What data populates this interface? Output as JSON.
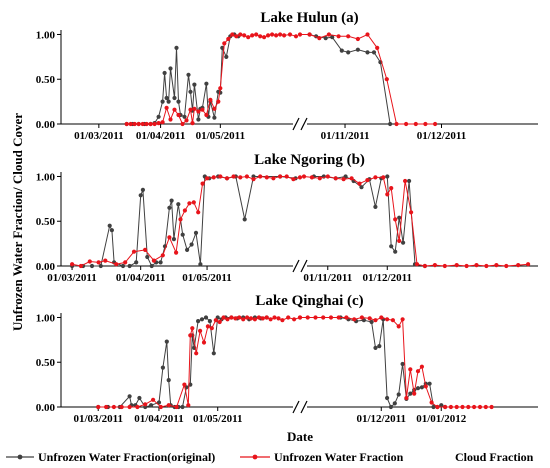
{
  "chart_data": {
    "type": "line",
    "ylabel": "Unfrozen Water Fraction/ Cloud Cover",
    "xlabel": "Date",
    "legend": {
      "placement": "bottom",
      "entries": [
        "Unfrozen Water Fraction(original)",
        "Unfrozen Water Fraction",
        "Cloud Fraction"
      ]
    },
    "colors": {
      "original": "#404040",
      "fraction": "#e8141b",
      "cloud": "#000000"
    },
    "panels": [
      {
        "title": "Lake Hulun (a)",
        "ylim": [
          0,
          1.05
        ],
        "yticks": [
          "0.00",
          "0.50",
          "1.00"
        ],
        "xticks": [
          "01/03/2011",
          "01/04/2011",
          "01/05/2011",
          "01/11/2011",
          "01/12/2011"
        ],
        "series": [
          {
            "name": "Unfrozen Water Fraction(original)",
            "x": [
              "2011-03-15",
              "2011-03-18",
              "2011-03-21",
              "2011-03-24",
              "2011-03-27",
              "2011-03-29",
              "2011-03-31",
              "2011-04-02",
              "2011-04-03",
              "2011-04-04",
              "2011-04-05",
              "2011-04-06",
              "2011-04-08",
              "2011-04-09",
              "2011-04-10",
              "2011-04-11",
              "2011-04-13",
              "2011-04-15",
              "2011-04-16",
              "2011-04-17",
              "2011-04-18",
              "2011-04-20",
              "2011-04-21",
              "2011-04-22",
              "2011-04-24",
              "2011-04-25",
              "2011-04-26",
              "2011-04-28",
              "2011-04-30",
              "2011-05-01",
              "2011-05-02",
              "2011-05-04",
              "2011-05-06",
              "2011-05-08",
              "2011-05-10",
              "2011-10-21",
              "2011-10-23",
              "2011-10-26",
              "2011-10-28",
              "2011-10-31",
              "2011-11-02",
              "2011-11-05",
              "2011-11-08",
              "2011-11-10",
              "2011-11-12",
              "2011-11-15"
            ],
            "y": [
              0.0,
              0.0,
              0.0,
              0.0,
              0.0,
              0.01,
              0.08,
              0.25,
              0.57,
              0.29,
              0.25,
              0.62,
              0.29,
              0.85,
              0.25,
              0.1,
              0.08,
              0.55,
              0.36,
              0.15,
              0.44,
              0.05,
              0.17,
              0.18,
              0.45,
              0.08,
              0.25,
              0.07,
              0.36,
              0.35,
              0.85,
              0.75,
              0.98,
              1.0,
              0.98,
              1.0,
              0.98,
              0.96,
              0.97,
              0.82,
              0.8,
              0.83,
              0.8,
              0.8,
              0.69,
              0.0
            ]
          },
          {
            "name": "Unfrozen Water Fraction",
            "x": [
              "2011-03-15",
              "2011-03-17",
              "2011-03-19",
              "2011-03-21",
              "2011-03-23",
              "2011-03-25",
              "2011-03-27",
              "2011-03-29",
              "2011-03-31",
              "2011-04-02",
              "2011-04-04",
              "2011-04-06",
              "2011-04-08",
              "2011-04-10",
              "2011-04-12",
              "2011-04-14",
              "2011-04-16",
              "2011-04-17",
              "2011-04-18",
              "2011-04-20",
              "2011-04-22",
              "2011-04-24",
              "2011-04-26",
              "2011-04-28",
              "2011-04-30",
              "2011-05-01",
              "2011-05-03",
              "2011-05-05",
              "2011-05-07",
              "2011-05-09",
              "2011-05-11",
              "2011-05-13",
              "2011-05-15",
              "2011-05-17",
              "2011-05-19",
              "2011-05-21",
              "2011-05-23",
              "2011-05-25",
              "2011-05-27",
              "2011-05-29",
              "2011-05-31",
              "2011-06-02",
              "2011-06-05",
              "2011-06-08",
              "2011-10-18",
              "2011-10-21",
              "2011-10-24",
              "2011-10-27",
              "2011-10-30",
              "2011-11-02",
              "2011-11-05",
              "2011-11-08",
              "2011-11-11",
              "2011-11-14",
              "2011-11-17",
              "2011-11-20",
              "2011-11-23",
              "2011-11-26",
              "2011-11-29"
            ],
            "y": [
              0.0,
              0.0,
              0.0,
              0.0,
              0.0,
              0.0,
              0.0,
              0.0,
              0.01,
              0.02,
              0.18,
              0.05,
              0.16,
              0.1,
              0.0,
              0.04,
              0.16,
              0.01,
              0.17,
              0.14,
              0.16,
              0.1,
              0.27,
              0.17,
              0.25,
              0.4,
              0.9,
              0.95,
              1.0,
              0.98,
              1.0,
              0.99,
              0.97,
              0.99,
              1.0,
              0.98,
              0.97,
              0.99,
              1.0,
              0.99,
              1.0,
              0.99,
              1.0,
              0.98,
              1.0,
              1.0,
              0.96,
              1.0,
              0.98,
              0.98,
              0.95,
              1.0,
              0.85,
              0.5,
              0.0,
              0.0,
              0.0,
              0.0,
              0.0
            ]
          }
        ]
      },
      {
        "title": "Lake Ngoring (b)",
        "ylim": [
          0,
          1.05
        ],
        "yticks": [
          "0.00",
          "0.50",
          "1.00"
        ],
        "xticks": [
          "01/03/2011",
          "01/04/2011",
          "01/05/2011",
          "01/11/2011",
          "01/12/2011"
        ],
        "series": [
          {
            "name": "Unfrozen Water Fraction(original)",
            "x": [
              "2011-03-01",
              "2011-03-06",
              "2011-03-10",
              "2011-03-14",
              "2011-03-18",
              "2011-03-19",
              "2011-03-20",
              "2011-03-24",
              "2011-03-27",
              "2011-03-30",
              "2011-04-01",
              "2011-04-02",
              "2011-04-04",
              "2011-04-06",
              "2011-04-08",
              "2011-04-10",
              "2011-04-12",
              "2011-04-14",
              "2011-04-15",
              "2011-04-16",
              "2011-04-18",
              "2011-04-20",
              "2011-04-22",
              "2011-04-24",
              "2011-04-26",
              "2011-04-28",
              "2011-04-30",
              "2011-05-02",
              "2011-05-06",
              "2011-05-10",
              "2011-05-14",
              "2011-05-18",
              "2011-05-22",
              "2011-06-03",
              "2011-06-10",
              "2011-10-25",
              "2011-10-30",
              "2011-11-05",
              "2011-11-10",
              "2011-11-14",
              "2011-11-18",
              "2011-11-22",
              "2011-11-25",
              "2011-11-28",
              "2011-12-01",
              "2011-12-03",
              "2011-12-05",
              "2011-12-07",
              "2011-12-09",
              "2011-12-12",
              "2011-12-15",
              "2011-12-20"
            ],
            "y": [
              0.0,
              0.0,
              0.0,
              0.0,
              0.45,
              0.4,
              0.04,
              0.0,
              0.0,
              0.04,
              0.79,
              0.85,
              0.1,
              0.0,
              0.04,
              0.04,
              0.22,
              0.65,
              0.73,
              0.3,
              0.69,
              0.35,
              0.18,
              0.24,
              0.37,
              0.02,
              1.0,
              0.98,
              1.0,
              0.98,
              1.0,
              0.52,
              1.0,
              1.0,
              0.98,
              1.0,
              1.0,
              0.98,
              1.0,
              0.95,
              0.88,
              0.97,
              0.66,
              0.98,
              1.0,
              0.22,
              0.16,
              0.54,
              0.26,
              0.95,
              0.02,
              0.0
            ]
          },
          {
            "name": "Unfrozen Water Fraction",
            "x": [
              "2011-03-01",
              "2011-03-05",
              "2011-03-09",
              "2011-03-13",
              "2011-03-16",
              "2011-03-21",
              "2011-03-25",
              "2011-03-29",
              "2011-04-03",
              "2011-04-07",
              "2011-04-11",
              "2011-04-14",
              "2011-04-17",
              "2011-04-19",
              "2011-04-21",
              "2011-04-23",
              "2011-04-25",
              "2011-04-27",
              "2011-04-29",
              "2011-05-01",
              "2011-05-04",
              "2011-05-07",
              "2011-05-10",
              "2011-05-13",
              "2011-05-16",
              "2011-05-19",
              "2011-05-22",
              "2011-05-25",
              "2011-05-28",
              "2011-05-31",
              "2011-06-03",
              "2011-06-06",
              "2011-06-09",
              "2011-06-12",
              "2011-10-20",
              "2011-10-24",
              "2011-10-28",
              "2011-11-01",
              "2011-11-05",
              "2011-11-09",
              "2011-11-13",
              "2011-11-17",
              "2011-11-21",
              "2011-11-25",
              "2011-11-29",
              "2011-12-01",
              "2011-12-03",
              "2011-12-05",
              "2011-12-07",
              "2011-12-10",
              "2011-12-13",
              "2011-12-16",
              "2011-12-20",
              "2011-12-25",
              "2011-12-30",
              "2012-01-05",
              "2012-01-10",
              "2012-01-15",
              "2012-01-20",
              "2012-01-25",
              "2012-01-30",
              "2012-02-05",
              "2012-02-10"
            ],
            "y": [
              0.02,
              0.0,
              0.05,
              0.04,
              0.06,
              0.02,
              0.04,
              0.16,
              0.18,
              0.06,
              0.12,
              0.32,
              0.15,
              0.52,
              0.62,
              0.7,
              0.71,
              0.6,
              0.92,
              0.98,
              0.99,
              1.0,
              0.98,
              1.0,
              0.99,
              1.0,
              0.97,
              1.0,
              0.99,
              0.98,
              1.0,
              1.0,
              0.97,
              0.99,
              1.0,
              0.99,
              0.98,
              1.0,
              0.98,
              0.97,
              0.98,
              0.92,
              0.96,
              0.99,
              0.99,
              0.8,
              0.87,
              0.52,
              0.28,
              0.95,
              0.6,
              0.02,
              0.0,
              0.01,
              0.0,
              0.01,
              0.0,
              0.01,
              0.0,
              0.01,
              0.0,
              0.01,
              0.02
            ]
          }
        ]
      },
      {
        "title": "Lake Qinghai (c)",
        "ylim": [
          0,
          1.05
        ],
        "yticks": [
          "0.00",
          "0.50",
          "1.00"
        ],
        "xticks": [
          "01/03/2011",
          "01/04/2011",
          "01/05/2011",
          "01/12/2011",
          "01/01/2012"
        ],
        "series": [
          {
            "name": "Unfrozen Water Fraction(original)",
            "x": [
              "2011-03-01",
              "2011-03-06",
              "2011-03-12",
              "2011-03-17",
              "2011-03-18",
              "2011-03-20",
              "2011-03-22",
              "2011-03-25",
              "2011-03-28",
              "2011-04-01",
              "2011-04-03",
              "2011-04-05",
              "2011-04-06",
              "2011-04-07",
              "2011-04-09",
              "2011-04-11",
              "2011-04-13",
              "2011-04-15",
              "2011-04-17",
              "2011-04-18",
              "2011-04-19",
              "2011-04-21",
              "2011-04-23",
              "2011-04-25",
              "2011-04-27",
              "2011-04-29",
              "2011-05-01",
              "2011-05-03",
              "2011-05-05",
              "2011-05-08",
              "2011-05-11",
              "2011-05-14",
              "2011-05-17",
              "2011-05-20",
              "2011-05-23",
              "2011-05-26",
              "2011-11-10",
              "2011-11-14",
              "2011-11-18",
              "2011-11-22",
              "2011-11-26",
              "2011-11-28",
              "2011-11-30",
              "2011-12-02",
              "2011-12-04",
              "2011-12-06",
              "2011-12-08",
              "2011-12-10",
              "2011-12-12",
              "2011-12-14",
              "2011-12-16",
              "2011-12-18",
              "2011-12-20",
              "2011-12-22",
              "2011-12-24",
              "2011-12-26",
              "2011-12-28",
              "2011-12-30",
              "2012-01-01",
              "2012-01-03"
            ],
            "y": [
              0.0,
              0.0,
              0.0,
              0.12,
              0.02,
              0.02,
              0.1,
              0.0,
              0.02,
              0.05,
              0.44,
              0.73,
              0.3,
              0.02,
              0.0,
              0.0,
              0.0,
              0.22,
              0.25,
              0.8,
              0.66,
              0.96,
              0.98,
              1.0,
              0.96,
              0.6,
              1.0,
              0.98,
              1.0,
              1.0,
              0.99,
              1.0,
              0.98,
              1.0,
              0.99,
              1.0,
              1.0,
              0.98,
              0.96,
              0.97,
              0.95,
              0.66,
              0.68,
              0.98,
              0.1,
              0.0,
              0.04,
              0.14,
              0.48,
              0.09,
              0.15,
              0.19,
              0.21,
              0.22,
              0.26,
              0.26,
              0.0,
              0.0,
              0.02,
              0.0
            ]
          },
          {
            "name": "Unfrozen Water Fraction",
            "x": [
              "2011-03-01",
              "2011-03-05",
              "2011-03-09",
              "2011-03-13",
              "2011-03-17",
              "2011-03-21",
              "2011-03-25",
              "2011-03-29",
              "2011-04-02",
              "2011-04-06",
              "2011-04-10",
              "2011-04-14",
              "2011-04-16",
              "2011-04-17",
              "2011-04-18",
              "2011-04-20",
              "2011-04-22",
              "2011-04-24",
              "2011-04-26",
              "2011-04-28",
              "2011-04-30",
              "2011-05-02",
              "2011-05-04",
              "2011-05-06",
              "2011-05-08",
              "2011-05-10",
              "2011-05-12",
              "2011-05-14",
              "2011-05-16",
              "2011-05-18",
              "2011-05-20",
              "2011-05-22",
              "2011-05-24",
              "2011-05-26",
              "2011-05-28",
              "2011-05-30",
              "2011-06-01",
              "2011-06-03",
              "2011-06-06",
              "2011-06-09",
              "2011-06-12",
              "2011-10-20",
              "2011-10-24",
              "2011-10-28",
              "2011-11-01",
              "2011-11-05",
              "2011-11-09",
              "2011-11-13",
              "2011-11-17",
              "2011-11-21",
              "2011-11-25",
              "2011-11-28",
              "2011-12-01",
              "2011-12-04",
              "2011-12-07",
              "2011-12-10",
              "2011-12-12",
              "2011-12-14",
              "2011-12-16",
              "2011-12-18",
              "2011-12-20",
              "2011-12-22",
              "2011-12-24",
              "2011-12-27",
              "2011-12-30",
              "2012-01-03",
              "2012-01-06",
              "2012-01-09",
              "2012-01-12",
              "2012-01-15",
              "2012-01-18",
              "2012-01-21",
              "2012-01-24",
              "2012-01-27"
            ],
            "y": [
              0.0,
              0.0,
              0.0,
              0.0,
              0.0,
              0.0,
              0.03,
              0.08,
              0.0,
              0.02,
              0.0,
              0.25,
              0.02,
              0.8,
              0.88,
              0.6,
              0.85,
              0.72,
              0.9,
              0.88,
              0.97,
              0.95,
              1.0,
              0.98,
              1.0,
              0.99,
              1.0,
              0.98,
              1.0,
              0.99,
              0.98,
              1.0,
              0.99,
              1.0,
              0.98,
              1.0,
              0.99,
              0.97,
              1.0,
              0.98,
              1.0,
              1.0,
              1.0,
              1.0,
              1.0,
              1.0,
              1.0,
              1.0,
              0.98,
              1.0,
              0.99,
              0.97,
              1.0,
              0.98,
              0.97,
              0.9,
              0.98,
              0.1,
              0.42,
              0.15,
              0.4,
              0.45,
              0.23,
              0.05,
              0.0,
              0.0,
              0.0,
              0.0,
              0.0,
              0.0,
              0.0,
              0.0,
              0.0,
              0.0
            ]
          }
        ]
      }
    ]
  }
}
